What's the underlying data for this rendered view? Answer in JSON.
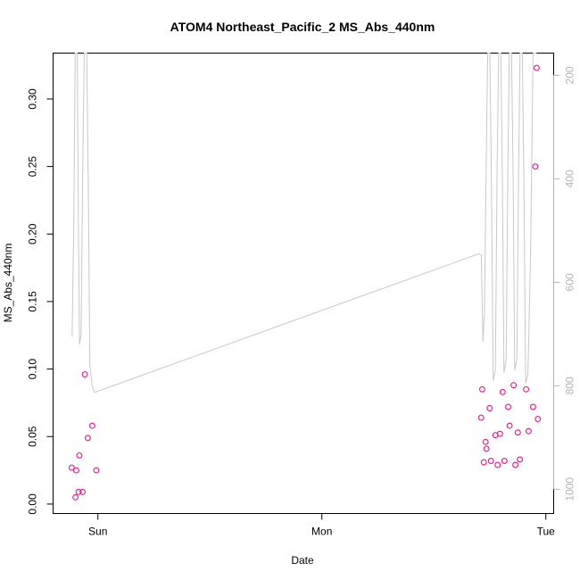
{
  "chart_data": {
    "type": "scatter",
    "title": "ATOM4 Northeast_Pacific_2 MS_Abs_440nm",
    "xlabel": "Date",
    "ylabel": "MS_Abs_440nm",
    "x_ticks": [
      {
        "label": "Sun",
        "t": 0.0
      },
      {
        "label": "Mon",
        "t": 1.0
      },
      {
        "label": "Tue",
        "t": 2.0
      }
    ],
    "y_ticks": [
      0.0,
      0.05,
      0.1,
      0.15,
      0.2,
      0.25,
      0.3
    ],
    "y_tick_labels": [
      "0.00",
      "0.05",
      "0.10",
      "0.15",
      "0.20",
      "0.25",
      "0.30"
    ],
    "xlim": [
      -0.2,
      2.035
    ],
    "ylim": [
      -0.007,
      0.334
    ],
    "y2_ticks": [
      200,
      400,
      600,
      800,
      1000
    ],
    "y2_tick_labels": [
      "200",
      "400",
      "600",
      "800",
      "1000"
    ],
    "y2lim": [
      1047,
      157
    ],
    "grid": false,
    "colors": {
      "points": "#e6178c",
      "depth_line": "#c8c8c8",
      "right_axis": "#b3b3b3"
    },
    "series": [
      {
        "type": "scatter",
        "points": [
          [
            -0.117,
            0.027
          ],
          [
            -0.1,
            0.005
          ],
          [
            -0.097,
            0.025
          ],
          [
            -0.086,
            0.009
          ],
          [
            -0.083,
            0.036
          ],
          [
            -0.068,
            0.009
          ],
          [
            -0.058,
            0.096
          ],
          [
            -0.045,
            0.049
          ],
          [
            -0.025,
            0.058
          ],
          [
            -0.007,
            0.025
          ],
          [
            1.711,
            0.064
          ],
          [
            1.716,
            0.085
          ],
          [
            1.723,
            0.031
          ],
          [
            1.731,
            0.046
          ],
          [
            1.735,
            0.041
          ],
          [
            1.749,
            0.071
          ],
          [
            1.755,
            0.032
          ],
          [
            1.775,
            0.051
          ],
          [
            1.785,
            0.029
          ],
          [
            1.795,
            0.052
          ],
          [
            1.807,
            0.083
          ],
          [
            1.815,
            0.032
          ],
          [
            1.832,
            0.072
          ],
          [
            1.838,
            0.058
          ],
          [
            1.856,
            0.088
          ],
          [
            1.864,
            0.029
          ],
          [
            1.875,
            0.053
          ],
          [
            1.884,
            0.033
          ],
          [
            1.912,
            0.085
          ],
          [
            1.923,
            0.054
          ],
          [
            1.943,
            0.072
          ],
          [
            1.953,
            0.25
          ],
          [
            1.959,
            0.323
          ],
          [
            1.964,
            0.063
          ]
        ]
      },
      {
        "type": "line",
        "axis": "right",
        "points": [
          [
            -0.115,
            705
          ],
          [
            -0.108,
            500
          ],
          [
            -0.101,
            157
          ],
          [
            -0.092,
            157
          ],
          [
            -0.087,
            500
          ],
          [
            -0.082,
            720
          ],
          [
            -0.075,
            700
          ],
          [
            -0.068,
            400
          ],
          [
            -0.061,
            157
          ],
          [
            -0.05,
            157
          ],
          [
            -0.043,
            400
          ],
          [
            -0.036,
            760
          ],
          [
            -0.026,
            800
          ],
          [
            -0.015,
            813
          ],
          [
            1.7,
            545
          ],
          [
            1.712,
            547
          ],
          [
            1.719,
            715
          ],
          [
            1.726,
            660
          ],
          [
            1.733,
            400
          ],
          [
            1.74,
            157
          ],
          [
            1.75,
            157
          ],
          [
            1.757,
            400
          ],
          [
            1.765,
            790
          ],
          [
            1.775,
            770
          ],
          [
            1.782,
            400
          ],
          [
            1.789,
            157
          ],
          [
            1.799,
            157
          ],
          [
            1.806,
            400
          ],
          [
            1.813,
            775
          ],
          [
            1.823,
            750
          ],
          [
            1.83,
            400
          ],
          [
            1.837,
            157
          ],
          [
            1.847,
            157
          ],
          [
            1.854,
            400
          ],
          [
            1.861,
            770
          ],
          [
            1.871,
            750
          ],
          [
            1.878,
            400
          ],
          [
            1.885,
            157
          ],
          [
            1.895,
            157
          ],
          [
            1.902,
            400
          ],
          [
            1.91,
            795
          ],
          [
            1.92,
            780
          ],
          [
            1.932,
            550
          ],
          [
            1.943,
            157
          ],
          [
            1.958,
            157
          ]
        ]
      }
    ]
  }
}
